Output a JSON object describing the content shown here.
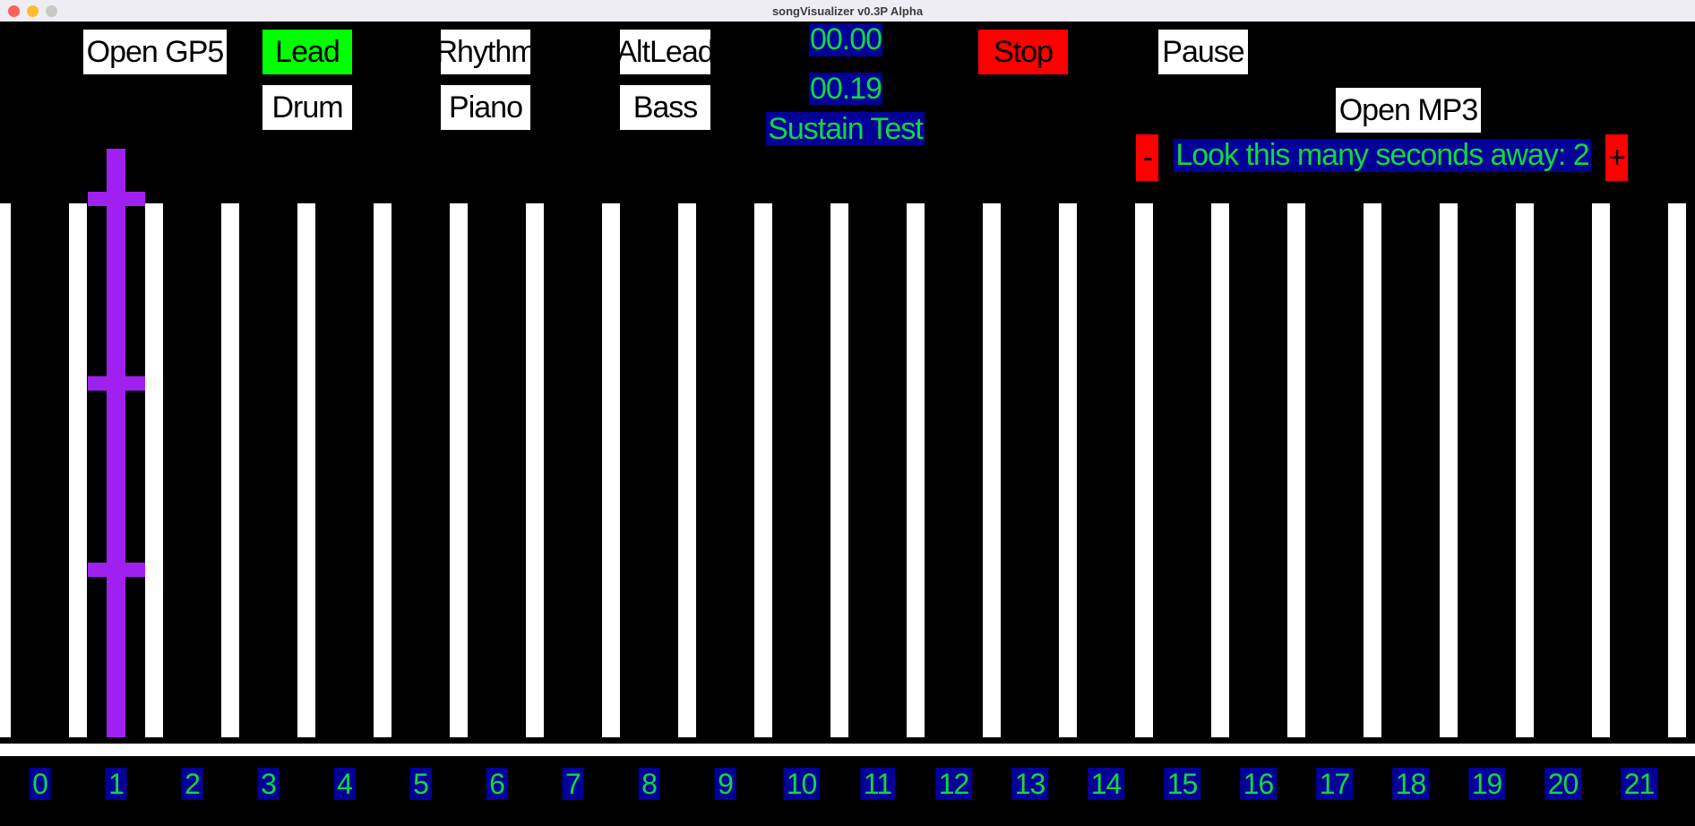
{
  "window": {
    "title": "songVisualizer v0.3P Alpha",
    "traffic_lights": [
      "close-button",
      "minimize-button",
      "zoom-button-disabled"
    ]
  },
  "toolbar": {
    "open_gp5": "Open GP5",
    "lead": "Lead",
    "rhythm": "Rhythm",
    "altlead": "AltLead",
    "drum": "Drum",
    "piano": "Piano",
    "bass": "Bass",
    "stop": "Stop",
    "pause": "Pause",
    "open_mp3": "Open MP3",
    "minus": "-",
    "plus": "+"
  },
  "status": {
    "time_current": "00.00",
    "time_total": "00.19",
    "song_title": "Sustain Test",
    "lookahead_label": "Look this many seconds away: 2",
    "lookahead_seconds": 2
  },
  "fretboard": {
    "fret_line_count": 23,
    "fret_numbers": [
      "0",
      "1",
      "2",
      "3",
      "4",
      "5",
      "6",
      "7",
      "8",
      "9",
      "10",
      "11",
      "12",
      "13",
      "14",
      "15",
      "16",
      "17",
      "18",
      "19",
      "20",
      "21"
    ],
    "playhead": {
      "fret_index": 1,
      "tick_positions_y": [
        214,
        420,
        628
      ]
    }
  },
  "colors": {
    "background": "#000000",
    "titlebar_bg": "#EEEDF4",
    "titlebar_text": "#3C3C3C",
    "traffic_close": "#FF5F57",
    "traffic_minimize": "#FEBC2E",
    "traffic_zoom": "#C8C8C8",
    "button_green": "#00FF00",
    "button_red": "#FF0000",
    "label_navy": "#000099",
    "label_green": "#12D83E",
    "playhead_purple": "#A020F0",
    "fret_white": "#FFFFFF"
  }
}
